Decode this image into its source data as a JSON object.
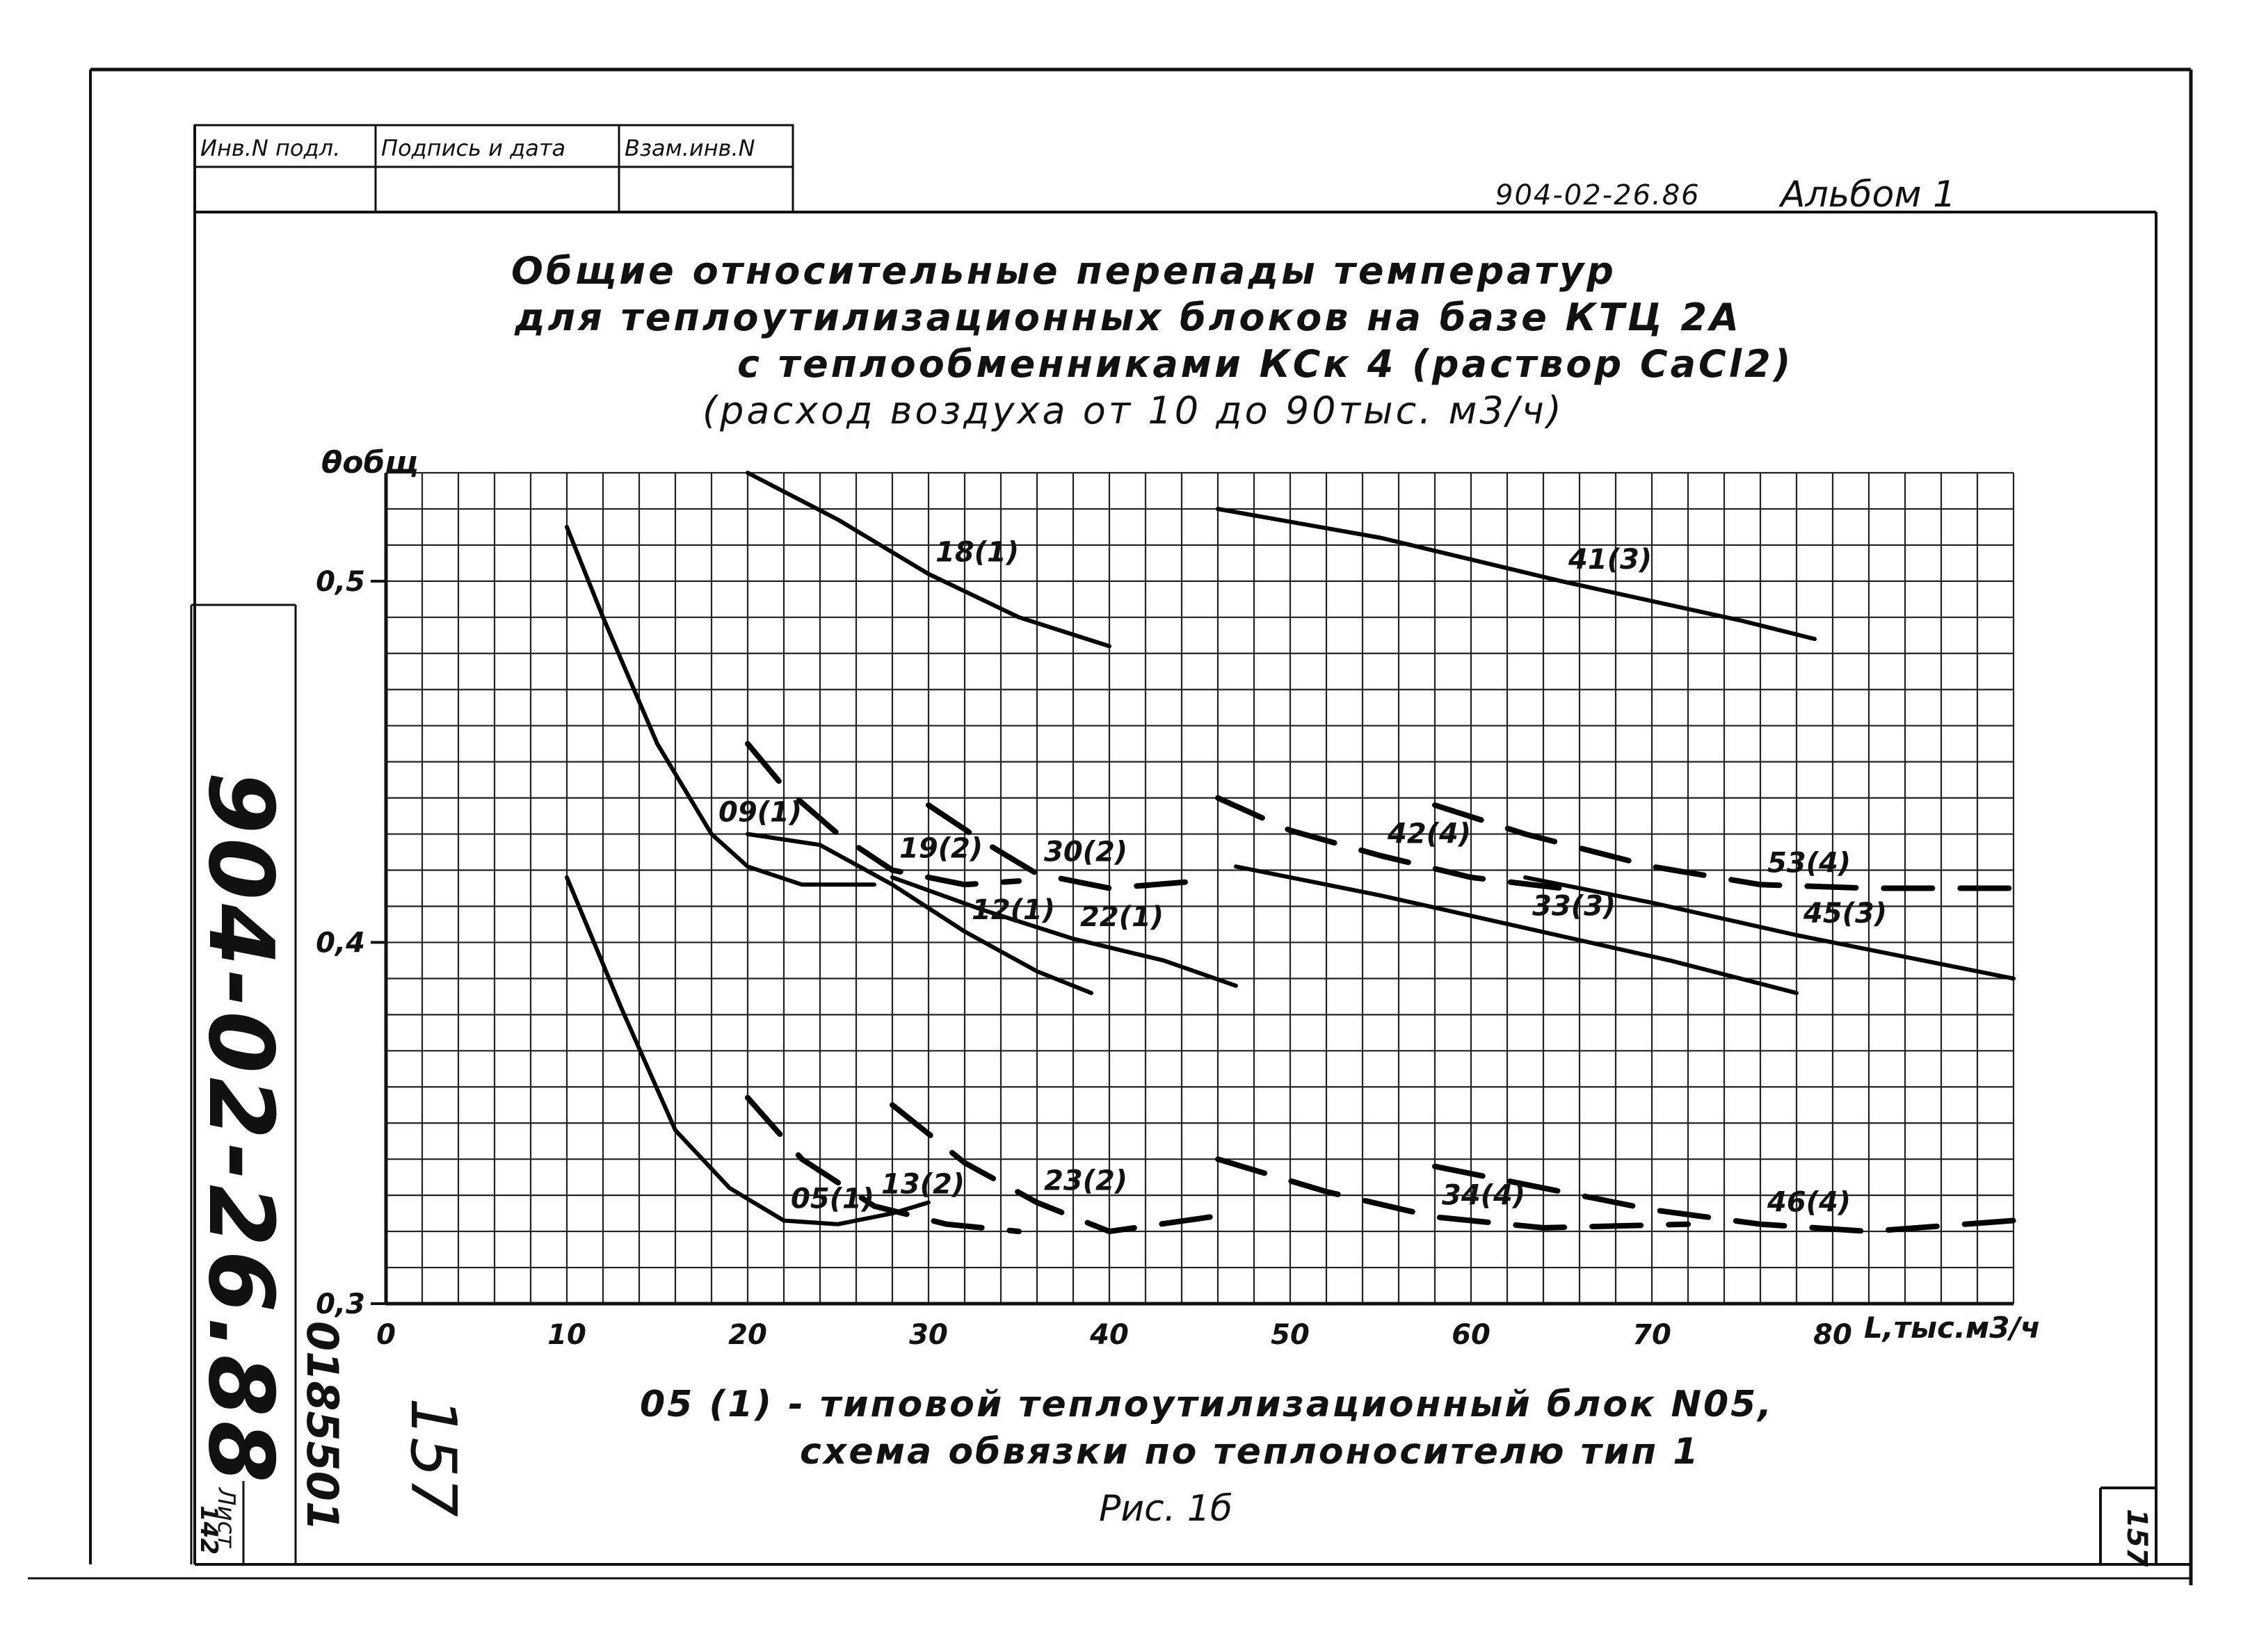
{
  "stamp": {
    "cells": [
      "Инв.N подл.",
      "Подпись и дата",
      "Взам.инв.N"
    ]
  },
  "header": {
    "doc_code": "904-02-26.86",
    "album": "Альбом 1"
  },
  "title_lines": [
    "Общие относительные перепады температур",
    "для теплоутилизационных блоков на базе КТЦ 2А",
    "с теплообменниками КСк 4 (раствор CaCl2)",
    "(расход воздуха от 10 до 90тыс. м3/ч)"
  ],
  "notes": {
    "legend_line1": "05 (1) - типовой теплоутилизационный блок N05,",
    "legend_line2": "схема обвязки по теплоносителю тип 1",
    "figure_caption": "Рис. 1б"
  },
  "side": {
    "vertical_code": "904-02-26.88",
    "number_a": "0185501",
    "sheet_label": "Лист",
    "sheet_no": "142",
    "handwritten_no": "157",
    "corner_no": "157"
  },
  "chart_data": {
    "type": "line",
    "title": "",
    "ylabel": "θобщ",
    "xlabel": "L,тыс.м3/ч",
    "xlim": [
      0,
      90
    ],
    "ylim": [
      0.3,
      0.53
    ],
    "x_ticks": [
      0,
      10,
      20,
      30,
      40,
      50,
      60,
      70,
      80
    ],
    "x_tick_labels": [
      "0",
      "10",
      "20",
      "30",
      "40",
      "50",
      "60",
      "70",
      "80"
    ],
    "y_ticks": [
      0.3,
      0.4,
      0.5
    ],
    "y_tick_labels": [
      "0,3",
      "0,4",
      "0,5"
    ],
    "grid": true,
    "series": [
      {
        "name": "18(1)",
        "style": "solid",
        "x": [
          20,
          25,
          30,
          35,
          40
        ],
        "y": [
          0.53,
          0.517,
          0.502,
          0.49,
          0.482
        ]
      },
      {
        "name": "41(3)",
        "style": "solid",
        "x": [
          46,
          55,
          65,
          75,
          79
        ],
        "y": [
          0.52,
          0.512,
          0.5,
          0.489,
          0.484
        ]
      },
      {
        "name": "09(1)",
        "style": "solid",
        "x": [
          10,
          12,
          15,
          18,
          20,
          23,
          27
        ],
        "y": [
          0.515,
          0.49,
          0.455,
          0.43,
          0.421,
          0.416,
          0.416
        ]
      },
      {
        "name": "12(1)",
        "style": "solid",
        "x": [
          20,
          24,
          28,
          32,
          36,
          39
        ],
        "y": [
          0.43,
          0.427,
          0.416,
          0.403,
          0.392,
          0.386
        ]
      },
      {
        "name": "22(1)",
        "style": "solid",
        "x": [
          28,
          33,
          38,
          43,
          47
        ],
        "y": [
          0.418,
          0.409,
          0.401,
          0.395,
          0.388
        ]
      },
      {
        "name": "33(3)",
        "style": "solid",
        "x": [
          47,
          55,
          63,
          71,
          78
        ],
        "y": [
          0.421,
          0.413,
          0.404,
          0.395,
          0.386
        ]
      },
      {
        "name": "45(3)",
        "style": "solid",
        "x": [
          63,
          70,
          78,
          84,
          90
        ],
        "y": [
          0.418,
          0.411,
          0.402,
          0.396,
          0.39
        ]
      },
      {
        "name": "05(1)",
        "style": "solid",
        "x": [
          10,
          13,
          16,
          19,
          22,
          25,
          28,
          30
        ],
        "y": [
          0.418,
          0.382,
          0.348,
          0.332,
          0.323,
          0.322,
          0.325,
          0.328
        ]
      },
      {
        "name": "19(2)",
        "style": "dashed",
        "x": [
          20,
          22,
          25,
          28,
          32,
          35
        ],
        "y": [
          0.455,
          0.443,
          0.43,
          0.42,
          0.416,
          0.417
        ]
      },
      {
        "name": "30(2)",
        "style": "dashed",
        "x": [
          30,
          33,
          36,
          40,
          45
        ],
        "y": [
          0.438,
          0.428,
          0.419,
          0.415,
          0.417
        ]
      },
      {
        "name": "42(4)",
        "style": "dashed",
        "x": [
          46,
          50,
          55,
          60,
          65
        ],
        "y": [
          0.44,
          0.431,
          0.424,
          0.418,
          0.415
        ]
      },
      {
        "name": "53(4)",
        "style": "dashed",
        "x": [
          58,
          63,
          70,
          76,
          82,
          90
        ],
        "y": [
          0.438,
          0.43,
          0.421,
          0.416,
          0.415,
          0.415
        ]
      },
      {
        "name": "13(2)",
        "style": "dashed",
        "x": [
          20,
          23,
          27,
          31,
          35
        ],
        "y": [
          0.357,
          0.34,
          0.327,
          0.322,
          0.32
        ]
      },
      {
        "name": "23(2)",
        "style": "dashed",
        "x": [
          28,
          32,
          36,
          40,
          47
        ],
        "y": [
          0.355,
          0.339,
          0.328,
          0.32,
          0.325
        ]
      },
      {
        "name": "34(4)",
        "style": "dashed",
        "x": [
          46,
          52,
          58,
          64,
          72
        ],
        "y": [
          0.34,
          0.331,
          0.324,
          0.321,
          0.322
        ]
      },
      {
        "name": "46(4)",
        "style": "dashed",
        "x": [
          58,
          64,
          70,
          76,
          82,
          90
        ],
        "y": [
          0.338,
          0.332,
          0.326,
          0.322,
          0.32,
          0.323
        ]
      }
    ]
  }
}
